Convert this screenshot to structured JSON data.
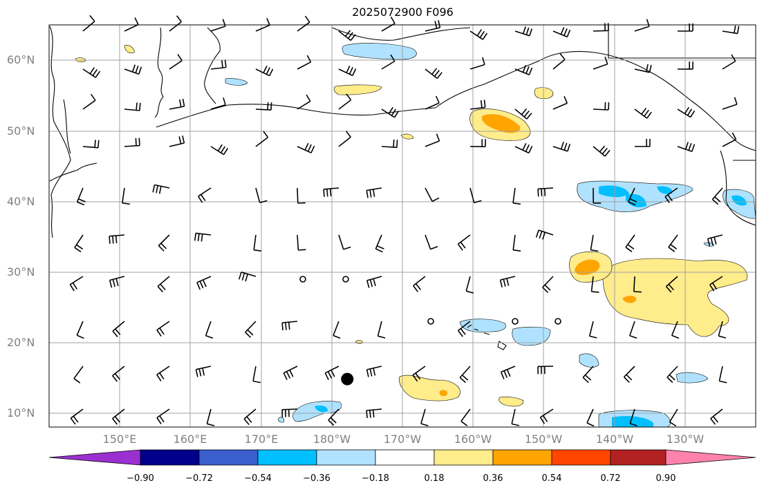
{
  "title": "2025072900 F096",
  "lat_labels": [
    "60°N",
    "50°N",
    "40°N",
    "30°N",
    "20°N",
    "10°N"
  ],
  "lon_labels": [
    "150°E",
    "160°E",
    "170°E",
    "180°W",
    "170°W",
    "160°W",
    "150°W",
    "140°W",
    "130°W"
  ],
  "colorbar": {
    "ticks": [
      "−0.90",
      "−0.72",
      "−0.54",
      "−0.36",
      "−0.18",
      "0.18",
      "0.36",
      "0.54",
      "0.72",
      "0.90"
    ],
    "colors": [
      "#9b30d0",
      "#00008b",
      "#3a5fcd",
      "#00bfff",
      "#b0e2ff",
      "#ffffff",
      "#ffec8b",
      "#ffa500",
      "#ff4500",
      "#b22222",
      "#ff82ab"
    ]
  },
  "map": {
    "extent": {
      "lon_min": 140,
      "lon_max": 240,
      "lat_min": 8,
      "lat_max": 65
    },
    "gridline_color": "#a0a0a0",
    "cyclone_marker": {
      "lon": 182.2,
      "lat": 14.8
    }
  }
}
